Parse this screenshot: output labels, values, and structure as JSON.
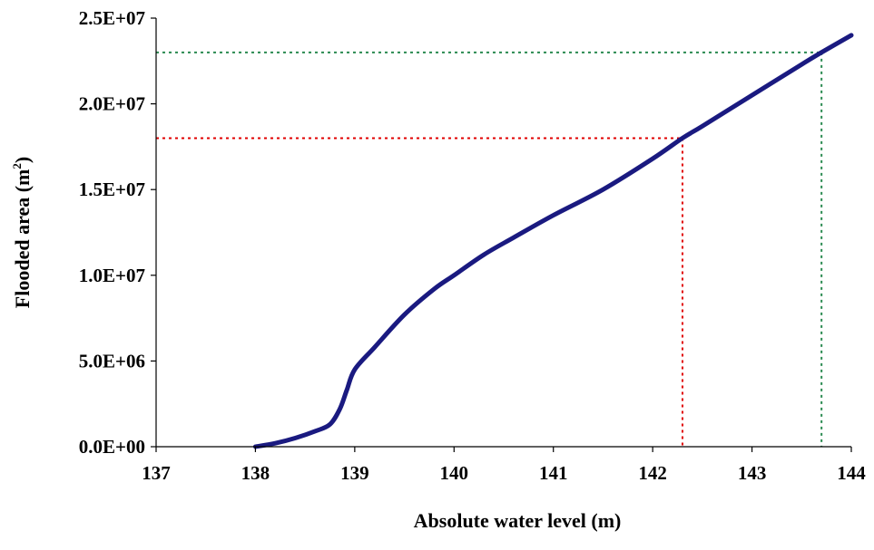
{
  "chart_data": {
    "type": "line",
    "title": "",
    "xlabel": "Absolute water level (m)",
    "ylabel_main": "Flooded area (m",
    "ylabel_sup": "2",
    "ylabel_tail": ")",
    "xlim": [
      137,
      144
    ],
    "ylim": [
      0,
      25000000
    ],
    "x_ticks": [
      137,
      138,
      139,
      140,
      141,
      142,
      143,
      144
    ],
    "x_tick_labels": [
      "137",
      "138",
      "139",
      "140",
      "141",
      "142",
      "143",
      "144"
    ],
    "y_ticks": [
      0,
      5000000,
      10000000,
      15000000,
      20000000,
      25000000
    ],
    "y_tick_labels": [
      "0.0E+00",
      "5.0E+06",
      "1.0E+07",
      "1.5E+07",
      "2.0E+07",
      "2.5E+07"
    ],
    "grid": false,
    "legend": "none",
    "series": [
      {
        "color": "#1a1a80",
        "x": [
          138.0,
          138.2,
          138.4,
          138.6,
          138.75,
          138.85,
          138.92,
          139.0,
          139.2,
          139.5,
          139.8,
          140.0,
          140.3,
          140.6,
          141.0,
          141.5,
          142.0,
          142.3,
          142.5,
          143.0,
          143.5,
          143.7,
          144.0
        ],
        "y": [
          0,
          200000,
          500000,
          900000,
          1300000,
          2200000,
          3300000,
          4500000,
          5800000,
          7700000,
          9200000,
          10000000,
          11200000,
          12200000,
          13500000,
          15000000,
          16800000,
          18000000,
          18700000,
          20500000,
          22300000,
          23000000,
          24000000
        ]
      }
    ],
    "reference_lines": [
      {
        "color": "#e00000",
        "x": 142.3,
        "y": 18000000
      },
      {
        "color": "#2a8a50",
        "x": 143.7,
        "y": 23000000
      }
    ]
  }
}
